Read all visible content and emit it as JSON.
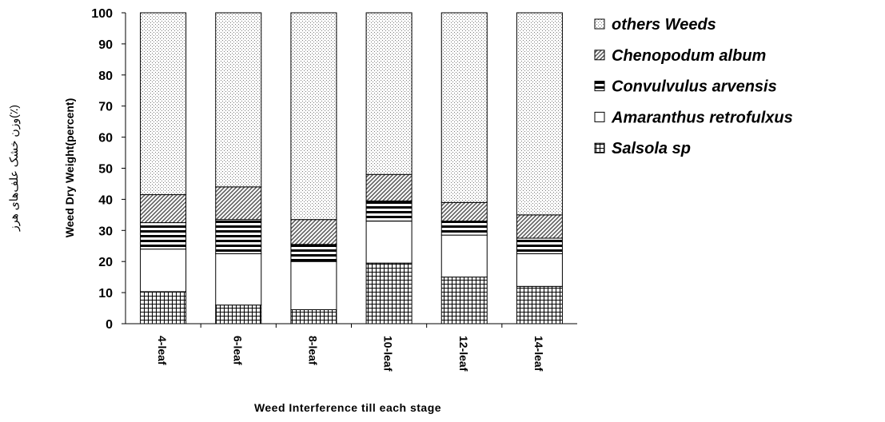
{
  "chart_data": {
    "type": "stacked_bar",
    "x_label": "Weed Interference till each stage",
    "y_label": "Weed Dry Weight(percent)",
    "y_label_secondary": "وزن خشک علف‌های هرز(٪)",
    "categories": [
      "4-leaf",
      "6-leaf",
      "8-leaf",
      "10-leaf",
      "12-leaf",
      "14-leaf"
    ],
    "series": [
      {
        "name": "Salsola sp",
        "color": "#000000",
        "pattern": "grid",
        "values": [
          10.3,
          6,
          4.5,
          19.5,
          15,
          12
        ]
      },
      {
        "name": "Amaranthus retrofulxus",
        "color": "#000000",
        "pattern": "none",
        "values": [
          13.7,
          16.5,
          15.5,
          13.5,
          13.5,
          10.5
        ]
      },
      {
        "name": "Convulvulus arvensis",
        "color": "#000000",
        "pattern": "hlines",
        "values": [
          8.5,
          11,
          5.5,
          6.5,
          4.5,
          5
        ]
      },
      {
        "name": "Chenopodum album",
        "color": "#000000",
        "pattern": "diagonal",
        "values": [
          9,
          10.5,
          8,
          8.5,
          6,
          7.5
        ]
      },
      {
        "name": "others Weeds",
        "color": "#000000",
        "pattern": "dots",
        "values": [
          58.5,
          56,
          66.5,
          52,
          61,
          65
        ]
      }
    ],
    "ylim": [
      0,
      100
    ],
    "yticks": [
      0,
      10,
      20,
      30,
      40,
      50,
      60,
      70,
      80,
      90,
      100
    ],
    "grid": false,
    "legend": "right"
  }
}
